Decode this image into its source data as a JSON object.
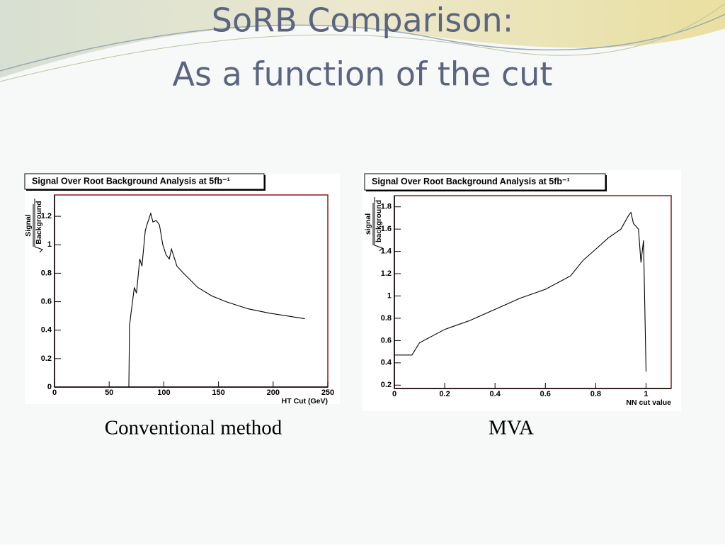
{
  "title": [
    "SoRB  Comparison:",
    "As a function of the cut"
  ],
  "captions": [
    "Conventional method",
    "MVA"
  ],
  "chart_data": [
    {
      "type": "line",
      "title": "Signal Over Root Background Analysis at 5fb⁻¹",
      "ylabel_numerator": "Signal",
      "ylabel_denominator": "Background",
      "xlabel": "HT Cut (GeV)",
      "x": [
        0,
        68,
        68.6,
        70,
        73,
        75,
        78,
        80,
        83,
        85,
        88,
        90,
        93,
        96,
        99,
        102,
        105,
        107,
        112,
        118,
        131,
        144,
        157,
        177,
        196,
        229
      ],
      "values": [
        0,
        0,
        0.43,
        0.52,
        0.7,
        0.66,
        0.9,
        0.85,
        1.1,
        1.15,
        1.22,
        1.16,
        1.17,
        1.14,
        1.0,
        0.93,
        0.9,
        0.97,
        0.85,
        0.8,
        0.7,
        0.64,
        0.6,
        0.55,
        0.52,
        0.48
      ],
      "color": "#000000",
      "xlim": [
        0,
        250
      ],
      "xticks": [
        0,
        50,
        100,
        150,
        200,
        250
      ],
      "ylim": [
        0,
        1.35
      ],
      "yticks": [
        0,
        0.2,
        0.4,
        0.6,
        0.8,
        1,
        1.2
      ]
    },
    {
      "type": "line",
      "title": "Signal Over Root Background Analysis at 5fb⁻¹",
      "ylabel_numerator": "signal",
      "ylabel_denominator": "background",
      "xlabel": "NN cut value",
      "x": [
        0,
        0.07,
        0.1,
        0.2,
        0.3,
        0.4,
        0.5,
        0.6,
        0.7,
        0.75,
        0.8,
        0.85,
        0.9,
        0.93,
        0.94,
        0.95,
        0.97,
        0.98,
        0.99,
        1.0
      ],
      "values": [
        0.47,
        0.47,
        0.58,
        0.7,
        0.78,
        0.88,
        0.98,
        1.06,
        1.18,
        1.32,
        1.42,
        1.52,
        1.6,
        1.72,
        1.75,
        1.65,
        1.6,
        1.3,
        1.5,
        0.32
      ],
      "color": "#000000",
      "xlim": [
        0,
        1.1
      ],
      "xticks": [
        0,
        0.2,
        0.4,
        0.6,
        0.8,
        1
      ],
      "ylim": [
        0.17,
        1.9
      ],
      "yticks": [
        0.2,
        0.4,
        0.6,
        0.8,
        1,
        1.2,
        1.4,
        1.6,
        1.8
      ]
    }
  ]
}
